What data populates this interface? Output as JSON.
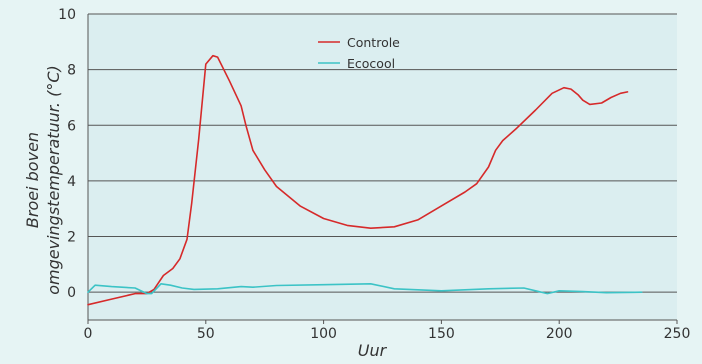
{
  "chart_data": {
    "type": "line",
    "title": "",
    "xlabel": "Uur",
    "ylabel_lines": [
      "Broei boven",
      "omgevingstemperatuur. (°C)"
    ],
    "xlim": [
      0,
      250
    ],
    "ylim": [
      -1,
      10
    ],
    "x_ticks": [
      0,
      50,
      100,
      150,
      200,
      250
    ],
    "y_ticks": [
      0,
      2,
      4,
      6,
      8,
      10
    ],
    "grid": "horizontal",
    "legend_position": "top-center",
    "colors": {
      "background": "#e6f4f4",
      "plot_background": "#dbeef0",
      "grid": "#555555",
      "controle": "#d62a2a",
      "ecocool": "#3cc3c6"
    },
    "series": [
      {
        "name": "Controle",
        "color": "#d62a2a",
        "points": [
          [
            0,
            -0.45
          ],
          [
            10,
            -0.25
          ],
          [
            20,
            -0.05
          ],
          [
            25,
            -0.05
          ],
          [
            28,
            0.1
          ],
          [
            32,
            0.6
          ],
          [
            36,
            0.85
          ],
          [
            39,
            1.2
          ],
          [
            42,
            1.9
          ],
          [
            44,
            3.2
          ],
          [
            47,
            5.5
          ],
          [
            50,
            8.2
          ],
          [
            53,
            8.5
          ],
          [
            55,
            8.45
          ],
          [
            60,
            7.6
          ],
          [
            65,
            6.7
          ],
          [
            67,
            6.0
          ],
          [
            70,
            5.1
          ],
          [
            75,
            4.4
          ],
          [
            80,
            3.8
          ],
          [
            90,
            3.1
          ],
          [
            100,
            2.65
          ],
          [
            110,
            2.4
          ],
          [
            120,
            2.3
          ],
          [
            130,
            2.35
          ],
          [
            140,
            2.6
          ],
          [
            150,
            3.1
          ],
          [
            160,
            3.6
          ],
          [
            165,
            3.9
          ],
          [
            170,
            4.5
          ],
          [
            173,
            5.1
          ],
          [
            176,
            5.45
          ],
          [
            182,
            5.9
          ],
          [
            190,
            6.55
          ],
          [
            197,
            7.15
          ],
          [
            202,
            7.35
          ],
          [
            205,
            7.3
          ],
          [
            208,
            7.1
          ],
          [
            210,
            6.9
          ],
          [
            213,
            6.75
          ],
          [
            218,
            6.8
          ],
          [
            222,
            7.0
          ],
          [
            226,
            7.15
          ],
          [
            229,
            7.2
          ]
        ]
      },
      {
        "name": "Ecocool",
        "color": "#3cc3c6",
        "points": [
          [
            0,
            0.0
          ],
          [
            3,
            0.25
          ],
          [
            10,
            0.2
          ],
          [
            20,
            0.15
          ],
          [
            25,
            -0.05
          ],
          [
            27,
            -0.05
          ],
          [
            31,
            0.3
          ],
          [
            35,
            0.25
          ],
          [
            40,
            0.15
          ],
          [
            45,
            0.1
          ],
          [
            55,
            0.12
          ],
          [
            65,
            0.2
          ],
          [
            70,
            0.18
          ],
          [
            80,
            0.24
          ],
          [
            100,
            0.27
          ],
          [
            120,
            0.3
          ],
          [
            130,
            0.12
          ],
          [
            150,
            0.05
          ],
          [
            170,
            0.12
          ],
          [
            185,
            0.15
          ],
          [
            190,
            0.05
          ],
          [
            195,
            -0.05
          ],
          [
            200,
            0.05
          ],
          [
            210,
            0.02
          ],
          [
            220,
            -0.02
          ],
          [
            235,
            0.0
          ]
        ]
      }
    ]
  }
}
